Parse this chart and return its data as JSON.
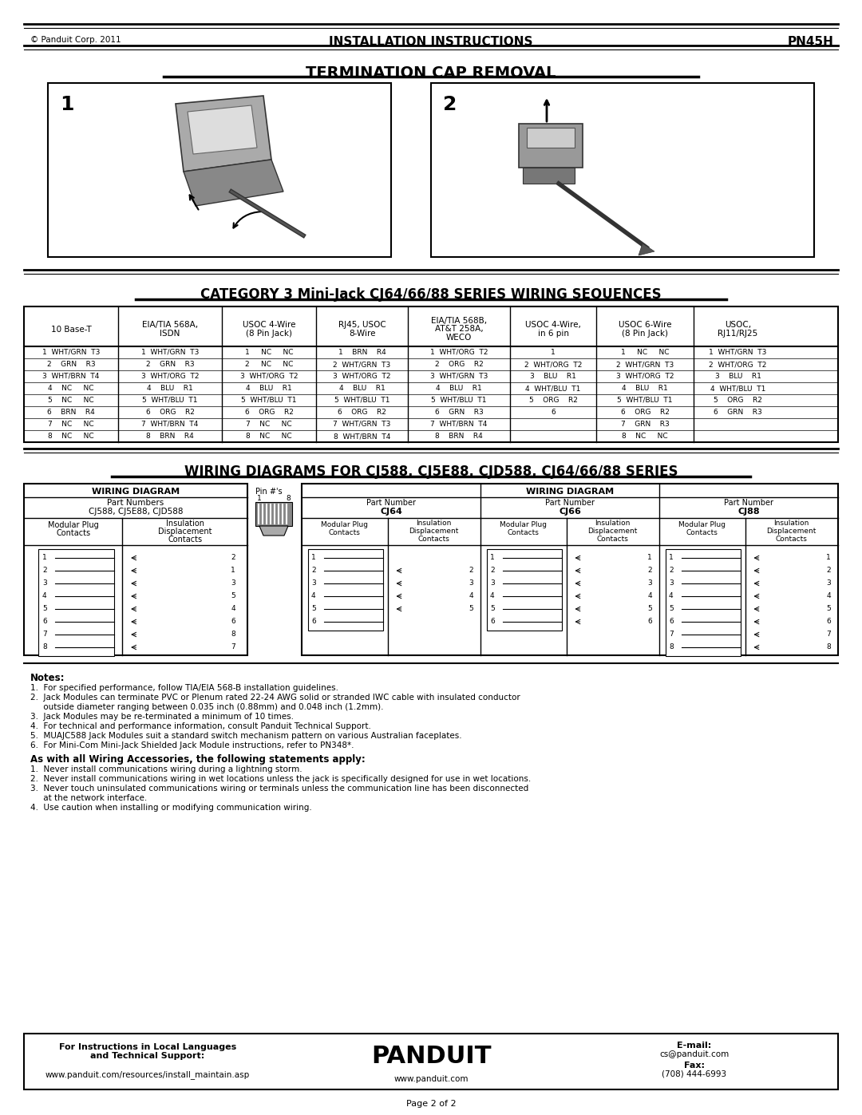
{
  "title_header": "INSTALLATION INSTRUCTIONS",
  "part_number": "PN45H",
  "copyright": "© Panduit Corp. 2011",
  "section1_title": "TERMINATION CAP REMOVAL",
  "section2_title": "CATEGORY 3 Mini-Jack CJ64/66/88 SERIES WIRING SEQUENCES",
  "section3_title": "WIRING DIAGRAMS FOR CJ588, CJ5E88, CJD588, CJ64/66/88 SERIES",
  "page_footer": "Page 2 of 2",
  "wiring_table_headers": [
    "10 Base-T",
    "EIA/TIA 568A,\nISDN",
    "USOC 4-Wire\n(8 Pin Jack)",
    "RJ45, USOC\n8-Wire",
    "EIA/TIA 568B,\nAT&T 258A,\nWECO",
    "USOC 4-Wire,\nin 6 pin",
    "USOC 6-Wire\n(8 Pin Jack)",
    "USOC,\nRJ11/RJ25"
  ],
  "wiring_rows": [
    [
      "1  WHT/GRN  T3",
      "1  WHT/GRN  T3",
      "1     NC     NC",
      "1    BRN    R4",
      "1  WHT/ORG  T2",
      "1",
      "1     NC     NC",
      "1  WHT/GRN  T3"
    ],
    [
      "2    GRN    R3",
      "2    GRN    R3",
      "2     NC     NC",
      "2  WHT/GRN  T3",
      "2    ORG    R2",
      "2  WHT/ORG  T2",
      "2  WHT/GRN  T3",
      "2  WHT/ORG  T2"
    ],
    [
      "3  WHT/BRN  T4",
      "3  WHT/ORG  T2",
      "3  WHT/ORG  T2",
      "3  WHT/ORG  T2",
      "3  WHT/GRN  T3",
      "3    BLU    R1",
      "3  WHT/ORG  T2",
      "3    BLU    R1"
    ],
    [
      "4    NC     NC",
      "4    BLU    R1",
      "4    BLU    R1",
      "4    BLU    R1",
      "4    BLU    R1",
      "4  WHT/BLU  T1",
      "4    BLU    R1",
      "4  WHT/BLU  T1"
    ],
    [
      "5    NC     NC",
      "5  WHT/BLU  T1",
      "5  WHT/BLU  T1",
      "5  WHT/BLU  T1",
      "5  WHT/BLU  T1",
      "5    ORG    R2",
      "5  WHT/BLU  T1",
      "5    ORG    R2"
    ],
    [
      "6    BRN    R4",
      "6    ORG    R2",
      "6    ORG    R2",
      "6    ORG    R2",
      "6    GRN    R3",
      "6",
      "6    ORG    R2",
      "6    GRN    R3"
    ],
    [
      "7    NC     NC",
      "7  WHT/BRN  T4",
      "7    NC     NC",
      "7  WHT/GRN  T3",
      "7  WHT/BRN  T4",
      "",
      "7    GRN    R3",
      ""
    ],
    [
      "8    NC     NC",
      "8    BRN    R4",
      "8    NC     NC",
      "8  WHT/BRN  T4",
      "8    BRN    R4",
      "",
      "8    NC     NC",
      ""
    ]
  ],
  "left_diag_idc": [
    "2",
    "1",
    "3",
    "5",
    "4",
    "6",
    "8",
    "7"
  ],
  "cj64_pins": 6,
  "cj64_idc": [
    "",
    "2",
    "3",
    "4",
    "5",
    ""
  ],
  "cj66_pins": 6,
  "cj66_idc": [
    "1",
    "2",
    "3",
    "4",
    "5",
    "6"
  ],
  "cj88_pins": 8,
  "cj88_idc": [
    "1",
    "2",
    "3",
    "4",
    "5",
    "6",
    "7",
    "8"
  ],
  "notes_title": "Notes:",
  "notes": [
    "1.  For specified performance, follow TIA/EIA 568-B installation guidelines.",
    "2.  Jack Modules can terminate PVC or Plenum rated 22-24 AWG solid or stranded IWC cable with insulated conductor",
    "     outside diameter ranging between 0.035 inch (0.88mm) and 0.048 inch (1.2mm).",
    "3.  Jack Modules may be re-terminated a minimum of 10 times.",
    "4.  For technical and performance information, consult Panduit Technical Support.",
    "5.  MUAJC588 Jack Modules suit a standard switch mechanism pattern on various Australian faceplates.",
    "6.  For Mini-Com Mini-Jack Shielded Jack Module instructions, refer to PN348*."
  ],
  "warning_title": "As with all Wiring Accessories, the following statements apply:",
  "warnings": [
    "1.  Never install communications wiring during a lightning storm.",
    "2.  Never install communications wiring in wet locations unless the jack is specifically designed for use in wet locations.",
    "3.  Never touch uninsulated communications wiring or terminals unless the communication line has been disconnected",
    "     at the network interface.",
    "4.  Use caution when installing or modifying communication wiring."
  ],
  "footer_left_bold": "For Instructions in Local Languages",
  "footer_left_bold2": "and Technical Support:",
  "footer_left_url": "www.panduit.com/resources/install_maintain.asp",
  "footer_center_url": "www.panduit.com",
  "footer_right_email_label": "E-mail:",
  "footer_right_email": "cs@panduit.com",
  "footer_right_fax_label": "Fax:",
  "footer_right_fax": "(708) 444-6993",
  "bg_color": "#ffffff"
}
